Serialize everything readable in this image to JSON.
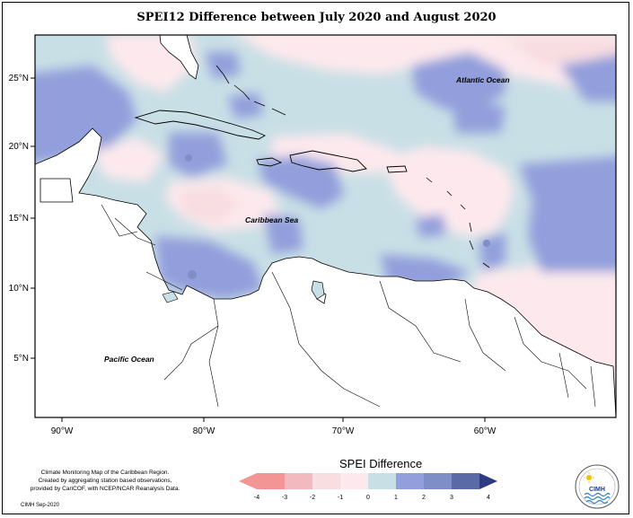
{
  "title": "SPEI12 Difference between July 2020 and August 2020",
  "axes": {
    "x_ticks": [
      "90°W",
      "80°W",
      "70°W",
      "60°W"
    ],
    "y_ticks": [
      "25°N",
      "20°N",
      "15°N",
      "10°N",
      "5°N"
    ]
  },
  "places": {
    "atlantic": "Atlantic Ocean",
    "caribbean": "Caribbean Sea",
    "pacific": "Pacific Ocean"
  },
  "legend": {
    "title": "SPEI Difference",
    "ticks": [
      "-4",
      "-3",
      "-2",
      "-1",
      "0",
      "1",
      "2",
      "3",
      "4"
    ],
    "colors": [
      "#f39595",
      "#f2b9bf",
      "#f8dde1",
      "#fde9ed",
      "#c9dfe6",
      "#929fdc",
      "#7e8fc8",
      "#5a6aa6",
      "#2f3b80"
    ]
  },
  "credits": {
    "line1": "Climate Monitoring Map of the Caribbean Region.",
    "line2": "Created by aggregating station based observations,",
    "line3": "provided by CariCOF, with NCEP/NCAR Reanalysis Data.",
    "stamp": "CIMH Sep-2020"
  },
  "logo": {
    "acronym": "CIMH",
    "icon": "sun-over-waves-logo"
  }
}
